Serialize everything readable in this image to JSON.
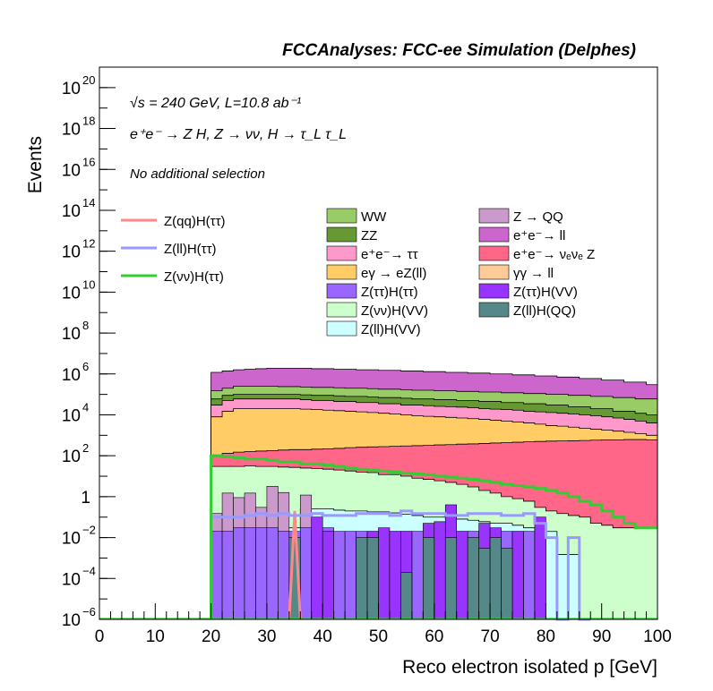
{
  "chart_data": {
    "type": "area",
    "style": "stacked-histogram-with-overlay-lines",
    "title": "FCCAnalyses: FCC-ee Simulation (Delphes)",
    "xlabel": "Reco electron isolated p [GeV]",
    "ylabel": "Events",
    "xlim": [
      0,
      100
    ],
    "ylim": [
      1e-06,
      1e+21
    ],
    "yscale": "log",
    "grid": false,
    "legend_position": "upper-middle",
    "x_ticks": [
      "0",
      "10",
      "20",
      "30",
      "40",
      "50",
      "60",
      "70",
      "80",
      "90",
      "100"
    ],
    "y_ticks": [
      {
        "base": "10",
        "exp": "−6",
        "value": 1e-06
      },
      {
        "base": "10",
        "exp": "−4",
        "value": 0.0001
      },
      {
        "base": "10",
        "exp": "−2",
        "value": 0.01
      },
      {
        "base": "1",
        "exp": "",
        "value": 1
      },
      {
        "base": "10",
        "exp": "2",
        "value": 100.0
      },
      {
        "base": "10",
        "exp": "4",
        "value": 10000.0
      },
      {
        "base": "10",
        "exp": "6",
        "value": 1000000.0
      },
      {
        "base": "10",
        "exp": "8",
        "value": 100000000.0
      },
      {
        "base": "10",
        "exp": "10",
        "value": 10000000000.0
      },
      {
        "base": "10",
        "exp": "12",
        "value": 1000000000000.0
      },
      {
        "base": "10",
        "exp": "14",
        "value": 100000000000000.0
      },
      {
        "base": "10",
        "exp": "16",
        "value": 1e+16
      },
      {
        "base": "10",
        "exp": "18",
        "value": 1e+18
      },
      {
        "base": "10",
        "exp": "20",
        "value": 1e+20
      }
    ],
    "annotations": {
      "energy_lumi": "√s = 240 GeV, L=10.8 ab⁻¹",
      "process": "e⁺e⁻ → Z H, Z → νν, H → τ_L τ_L",
      "selection": "No additional selection"
    },
    "bin_edges": [
      20,
      22,
      24,
      26,
      28,
      30,
      32,
      34,
      36,
      38,
      40,
      42,
      44,
      46,
      48,
      50,
      52,
      54,
      56,
      58,
      60,
      62,
      64,
      66,
      68,
      70,
      72,
      74,
      76,
      78,
      80,
      82,
      84,
      86,
      88,
      90,
      92,
      94,
      96,
      98,
      100
    ],
    "stack_cumulative_tops": [
      {
        "name": "Z(ll)H(VV)",
        "color": "#ccffff",
        "values": [
          0.03,
          0.03,
          0.03,
          0.03,
          0.03,
          0.03,
          0.03,
          0.03,
          0.25,
          0.25,
          0.25,
          0.22,
          0.2,
          0.2,
          0.18,
          0.18,
          0.16,
          0.14,
          0.12,
          0.1,
          0.1,
          0.08,
          0.08,
          0.07,
          0.06,
          0.05,
          0.05,
          0.04,
          0.03,
          0.02,
          0.02,
          0.0015,
          0.0015,
          1e-06,
          1e-06,
          1e-06,
          1e-06,
          1e-06,
          1e-06,
          1e-06
        ]
      },
      {
        "name": "Z(νν)H(VV)",
        "color": "#ccffcc",
        "values": [
          30,
          30,
          30,
          32,
          30,
          30,
          28,
          27,
          25,
          24,
          22,
          20,
          18,
          16,
          15,
          12,
          12,
          10,
          8,
          7,
          6,
          5,
          4,
          3,
          2,
          1.5,
          1,
          0.8,
          0.6,
          0.3,
          0.2,
          0.15,
          0.12,
          0.1,
          0.05,
          0.04,
          0.03,
          0.03,
          0.03,
          0.03
        ]
      },
      {
        "name": "e⁺e⁻ → νₑνₑ Z",
        "color": "#ff6688",
        "values": [
          100,
          130,
          150,
          160,
          170,
          180,
          190,
          200,
          200,
          210,
          220,
          230,
          250,
          260,
          270,
          280,
          290,
          300,
          310,
          320,
          340,
          350,
          370,
          380,
          400,
          420,
          440,
          460,
          480,
          500,
          520,
          530,
          540,
          560,
          580,
          600,
          600,
          620,
          620,
          600
        ]
      },
      {
        "name": "Z(ll)H(QQ)",
        "color": "#558888",
        "values": []
      },
      {
        "name": "e⁺e⁻ → ll",
        "color": "#cc66cc",
        "values": [
          1200000.0,
          1400000.0,
          1600000.0,
          1700000.0,
          1800000.0,
          1900000.0,
          1900000.0,
          1900000.0,
          1900000.0,
          1800000.0,
          1800000.0,
          1700000.0,
          1700000.0,
          1600000.0,
          1600000.0,
          1500000.0,
          1500000.0,
          1400000.0,
          1400000.0,
          1300000.0,
          1300000.0,
          1200000.0,
          1200000.0,
          1100000.0,
          1100000.0,
          1000000.0,
          1000000.0,
          900000.0,
          900000.0,
          800000.0,
          800000.0,
          700000.0,
          700000.0,
          600000.0,
          600000.0,
          500000.0,
          500000.0,
          400000.0,
          400000.0,
          300000.0
        ]
      },
      {
        "name": "WW",
        "color": "#99cc66",
        "values": [
          150000.0,
          200000.0,
          250000.0,
          250000.0,
          250000.0,
          250000.0,
          240000.0,
          240000.0,
          230000.0,
          220000.0,
          220000.0,
          210000.0,
          200000.0,
          200000.0,
          190000.0,
          180000.0,
          180000.0,
          170000.0,
          160000.0,
          160000.0,
          150000.0,
          150000.0,
          140000.0,
          140000.0,
          130000.0,
          130000.0,
          120000.0,
          120000.0,
          110000.0,
          110000.0,
          100000.0,
          100000.0,
          90000.0,
          90000.0,
          80000.0,
          80000.0,
          70000.0,
          70000.0,
          60000.0,
          60000.0
        ]
      },
      {
        "name": "ZZ",
        "color": "#669933",
        "values": [
          60000.0,
          90000.0,
          100000.0,
          100000.0,
          100000.0,
          100000.0,
          100000.0,
          100000.0,
          95000.0,
          90000.0,
          90000.0,
          85000.0,
          80000.0,
          80000.0,
          75000.0,
          70000.0,
          70000.0,
          65000.0,
          60000.0,
          60000.0,
          55000.0,
          55000.0,
          50000.0,
          50000.0,
          45000.0,
          45000.0,
          40000.0,
          40000.0,
          35000.0,
          35000.0,
          30000.0,
          30000.0,
          25000.0,
          25000.0,
          20000.0,
          20000.0,
          15000.0,
          15000.0,
          12000.0,
          10000.0
        ]
      },
      {
        "name": "e⁺e⁻ → ττ",
        "color": "#ff99cc",
        "values": [
          30000.0,
          50000.0,
          60000.0,
          60000.0,
          60000.0,
          60000.0,
          60000.0,
          60000.0,
          55000.0,
          50000.0,
          50000.0,
          45000.0,
          45000.0,
          40000.0,
          40000.0,
          35000.0,
          35000.0,
          30000.0,
          30000.0,
          28000.0,
          26000.0,
          25000.0,
          24000.0,
          22000.0,
          20000.0,
          19000.0,
          18000.0,
          17000.0,
          15000.0,
          14000.0,
          13000.0,
          12000.0,
          11000.0,
          10000.0,
          9000.0,
          8000.0,
          7000.0,
          6000.0,
          5000.0,
          4000.0
        ]
      },
      {
        "name": "eγ → eZ(ll)",
        "color": "#ffcc66",
        "values": [
          8000.0,
          15000.0,
          20000.0,
          20000.0,
          20000.0,
          20000.0,
          20000.0,
          20000.0,
          19000.0,
          18000.0,
          17000.0,
          16000.0,
          15000.0,
          14000.0,
          13000.0,
          12000.0,
          11000.0,
          10000.0,
          9000.0,
          8500.0,
          8000.0,
          7500.0,
          7000.0,
          6500.0,
          6000.0,
          5500.0,
          5000.0,
          4500.0,
          4000.0,
          3500.0,
          3000.0,
          2800.0,
          2500.0,
          2200.0,
          2000.0,
          1800.0,
          1600.0,
          1400.0,
          1200.0,
          1000.0
        ]
      },
      {
        "name": "γγ → ll",
        "color": "#ffcc99",
        "values": []
      },
      {
        "name": "Z → QQ",
        "color": "#cc99cc",
        "values": [
          0.15,
          1.5,
          0.9,
          1.5,
          0.3,
          3.2,
          1.6,
          1e-06,
          1.2,
          1e-06,
          1e-06,
          1e-06,
          1e-06,
          1e-06,
          1e-06,
          1e-06,
          1e-06,
          1e-06,
          1e-06,
          1e-06,
          1e-06,
          1e-06,
          1e-06,
          1e-06,
          1e-06,
          1e-06,
          1e-06,
          1e-06,
          1e-06,
          1e-06,
          1e-06,
          1e-06,
          1e-06,
          1e-06,
          1e-06,
          1e-06,
          1e-06,
          1e-06,
          1e-06,
          1e-06
        ]
      },
      {
        "name": "Z(ττ)H(ττ)",
        "color": "#9966ff",
        "values": [
          0.02,
          0.02,
          0.03,
          0.03,
          0.03,
          0.03,
          0.02,
          0.02,
          0.03,
          0.02,
          0.03,
          0.02,
          0.02,
          0.02,
          0.02,
          0.02,
          0.02,
          0.02,
          0.02,
          0.02,
          0.02,
          0.02,
          0.02,
          0.02,
          0.02,
          0.02,
          0.02,
          0.02,
          0.02,
          0.02,
          1e-06,
          1e-06,
          1e-06,
          1e-06,
          1e-06,
          1e-06,
          1e-06,
          1e-06,
          1e-06,
          1e-06
        ]
      },
      {
        "name": "Z(ττ)H(VV)",
        "color": "#9933ff",
        "values": []
      }
    ],
    "hist_edges_fine": [
      20,
      22,
      24,
      26,
      28,
      30,
      32,
      34,
      36,
      38,
      40,
      42,
      44,
      46,
      48,
      50,
      52,
      54,
      56,
      58,
      60,
      62,
      64,
      66,
      68,
      70,
      72,
      74,
      76,
      78,
      80,
      82,
      84,
      86,
      88,
      90,
      92,
      94,
      96,
      98,
      100
    ],
    "overlay_bars": {
      "ztthvv_dark_purple": {
        "color": "#9933ff",
        "values": [
          1e-06,
          1e-06,
          1e-06,
          1e-06,
          1e-06,
          1e-06,
          1e-06,
          1e-06,
          1e-06,
          1e-06,
          1e-06,
          1e-06,
          1e-06,
          1e-06,
          1e-06,
          1e-06,
          1e-06,
          1e-06,
          1e-06,
          1e-06,
          1e-06,
          1e-06,
          1e-06,
          1e-06,
          1e-06,
          1e-06,
          1e-06,
          1e-06,
          1e-06,
          1e-06,
          1e-06,
          1e-06,
          1e-06,
          1e-06,
          1e-06,
          1e-06,
          1e-06,
          1e-06,
          1e-06,
          1e-06
        ]
      }
    },
    "sparse_bars": [
      {
        "name": "Z(ττ)H(ττ)",
        "color": "#9966ff",
        "x": [
          20,
          22,
          24,
          26,
          28,
          30,
          32,
          34,
          36,
          38,
          40,
          42,
          44,
          46,
          48,
          50,
          52,
          54,
          56,
          58,
          60,
          62,
          64,
          66,
          68,
          70,
          72,
          74,
          76,
          78
        ],
        "values": [
          0.02,
          0.02,
          0.03,
          0.03,
          0.03,
          0.03,
          0.02,
          0.02,
          0.03,
          0.02,
          0.03,
          0.02,
          0.02,
          0.02,
          0.02,
          0.02,
          0.02,
          0.02,
          0.02,
          0.02,
          0.02,
          0.02,
          0.02,
          0.02,
          0.02,
          0.02,
          0.02,
          0.02,
          0.02,
          0.02
        ]
      },
      {
        "name": "Z(ττ)H(VV)",
        "color": "#9933ff",
        "x": [
          38,
          40,
          48,
          50,
          52,
          54,
          58,
          60,
          62,
          64,
          68,
          70,
          74,
          78
        ],
        "values": [
          0.1,
          0.02,
          0.02,
          0.03,
          0.02,
          0.02,
          0.05,
          0.06,
          0.4,
          0.02,
          0.05,
          0.03,
          0.02,
          0.1
        ]
      },
      {
        "name": "Z(ll)H(QQ)",
        "color": "#558888",
        "x": [
          34,
          46,
          48,
          54,
          58,
          62,
          66,
          68,
          70,
          72
        ],
        "values": [
          0.01,
          0.01,
          0.01,
          0.0002,
          0.01,
          0.01,
          0.01,
          0.003,
          0.01,
          0.003
        ]
      }
    ],
    "lines": [
      {
        "name": "Z(qq)H(ττ)",
        "color": "#ff8888",
        "x": [
          34,
          35,
          35,
          36
        ],
        "values": [
          1e-06,
          0.2,
          0.2,
          1e-06
        ]
      },
      {
        "name": "Z(ll)H(ττ)",
        "color": "#9999ff",
        "edges": [
          20,
          22,
          24,
          26,
          28,
          30,
          32,
          34,
          36,
          38,
          40,
          42,
          44,
          46,
          48,
          50,
          52,
          54,
          56,
          58,
          60,
          62,
          64,
          66,
          68,
          70,
          72,
          74,
          76,
          78,
          80,
          82,
          84,
          86,
          88
        ],
        "values": [
          0.1,
          0.1,
          0.1,
          0.12,
          0.15,
          0.12,
          0.15,
          0.12,
          0.12,
          0.15,
          0.12,
          0.12,
          0.12,
          0.15,
          0.15,
          0.15,
          0.12,
          0.2,
          0.15,
          0.15,
          0.15,
          0.12,
          0.12,
          0.15,
          0.15,
          0.15,
          0.12,
          0.12,
          0.15,
          0.05,
          0.01,
          1e-06,
          0.01,
          1e-06
        ]
      },
      {
        "name": "Z(νν)H(ττ)",
        "color": "#33cc33",
        "edges": [
          20,
          22,
          24,
          26,
          28,
          30,
          32,
          34,
          36,
          38,
          40,
          42,
          44,
          46,
          48,
          50,
          52,
          54,
          56,
          58,
          60,
          62,
          64,
          66,
          68,
          70,
          72,
          74,
          76,
          78,
          80,
          82,
          84,
          86,
          88,
          90,
          92,
          94,
          96,
          98,
          100
        ],
        "values": [
          100,
          90,
          80,
          70,
          70,
          60,
          50,
          50,
          40,
          40,
          35,
          30,
          25,
          22,
          20,
          18,
          16,
          14,
          13,
          12,
          10,
          9,
          8,
          7,
          6,
          5,
          4,
          3.5,
          3,
          2.5,
          2,
          1.5,
          1,
          0.6,
          0.4,
          0.2,
          0.1,
          0.05,
          0.03,
          0.03
        ]
      }
    ],
    "legend_left": [
      {
        "label": "Z(qq)H(ττ)",
        "color": "#ff8888",
        "kind": "line"
      },
      {
        "label": "Z(ll)H(ττ)",
        "color": "#9999ff",
        "kind": "line"
      },
      {
        "label": "Z(νν)H(ττ)",
        "color": "#33cc33",
        "kind": "line"
      }
    ],
    "legend_mid": [
      {
        "label": "WW",
        "color": "#99cc66"
      },
      {
        "label": "ZZ",
        "color": "#669933"
      },
      {
        "label": "e⁺e⁻→ ττ",
        "color": "#ff99cc"
      },
      {
        "label": "eγ → eZ(ll)",
        "color": "#ffcc66"
      },
      {
        "label": "Z(ττ)H(ττ)",
        "color": "#9966ff"
      },
      {
        "label": "Z(νν)H(VV)",
        "color": "#ccffcc"
      },
      {
        "label": "Z(ll)H(VV)",
        "color": "#ccffff"
      }
    ],
    "legend_right": [
      {
        "label": "Z → QQ",
        "color": "#cc99cc"
      },
      {
        "label": "e⁺e⁻→ ll",
        "color": "#cc66cc"
      },
      {
        "label": "e⁺e⁻→ νₑνₑ Z",
        "color": "#ff6688"
      },
      {
        "label": "γγ → ll",
        "color": "#ffcc99"
      },
      {
        "label": "Z(ττ)H(VV)",
        "color": "#9933ff"
      },
      {
        "label": "Z(ll)H(QQ)",
        "color": "#558888"
      }
    ]
  }
}
